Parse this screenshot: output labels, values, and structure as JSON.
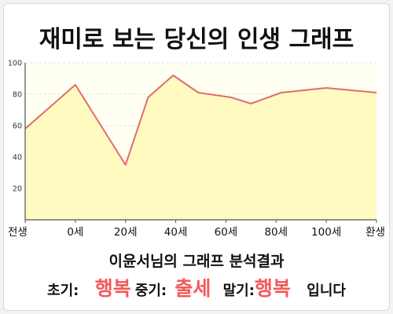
{
  "chart_data": {
    "type": "area",
    "title": "재미로 보는 당신의 인생 그래프",
    "categories": [
      "전생",
      "0세",
      "20세",
      "40세",
      "60세",
      "80세",
      "100세",
      "환생"
    ],
    "points": [
      {
        "x": 0,
        "y": 58
      },
      {
        "x": 1,
        "y": 86
      },
      {
        "x": 2,
        "y": 35
      },
      {
        "x": 2.45,
        "y": 78
      },
      {
        "x": 2.95,
        "y": 92
      },
      {
        "x": 3.45,
        "y": 81
      },
      {
        "x": 4.1,
        "y": 78
      },
      {
        "x": 4.5,
        "y": 74
      },
      {
        "x": 5.1,
        "y": 81
      },
      {
        "x": 6.0,
        "y": 84
      },
      {
        "x": 7,
        "y": 81
      }
    ],
    "yticks": [
      "20",
      "40",
      "60",
      "80",
      "100"
    ],
    "ylim": [
      0,
      100
    ],
    "grid": true,
    "colors": {
      "line": "#e06d6d",
      "fill": "#fffac0",
      "plot_bg": "#fffff2",
      "grid": "#e4e4cc"
    }
  },
  "result": {
    "title": "이윤서님의 그래프 분석결과",
    "early_label": "초기:",
    "early_value": "행복",
    "mid_label": "중기:",
    "mid_value": "출세",
    "late_label": "말기:",
    "late_value": "행복",
    "ending": "입니다"
  }
}
